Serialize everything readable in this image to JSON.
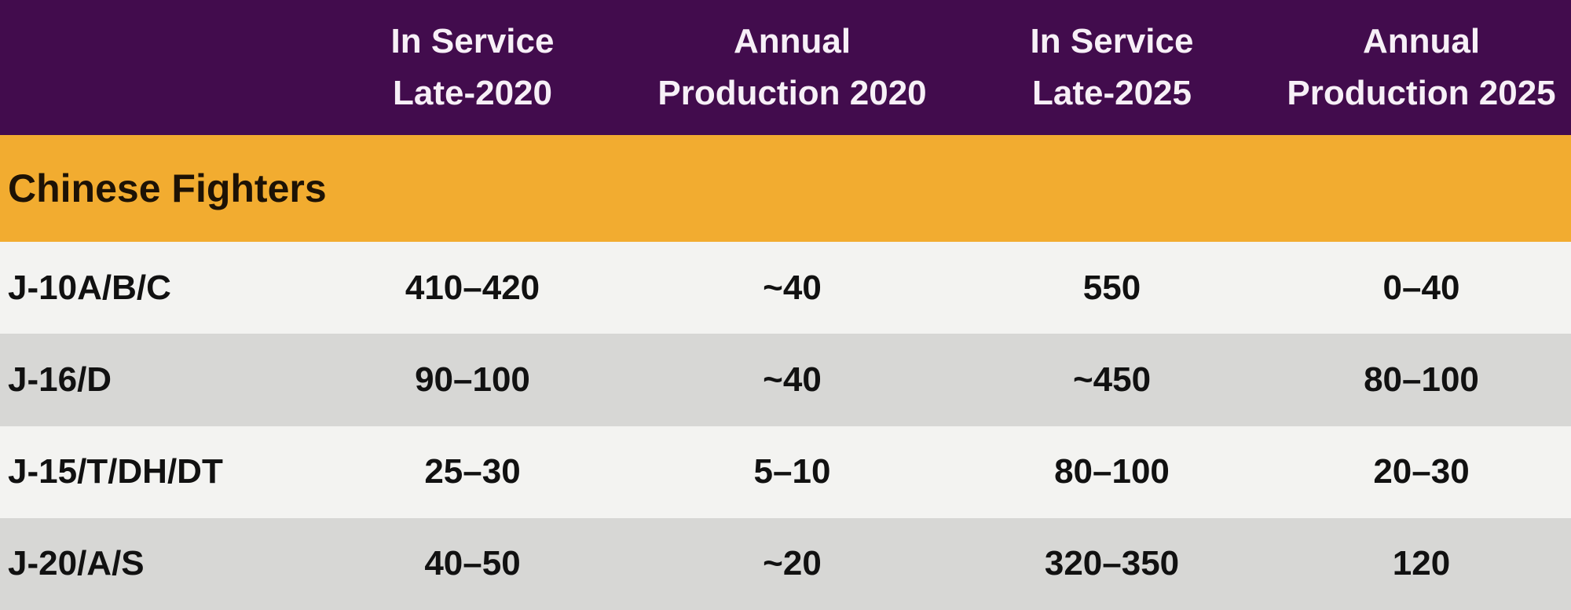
{
  "colors": {
    "header_bg": "#420c4d",
    "header_text": "#f7f0f7",
    "section_bg": "#f2ac30",
    "section_text": "#1d1205",
    "row_light": "#f3f3f1",
    "row_dark": "#d7d7d5",
    "data_text": "#111111"
  },
  "chart_data": {
    "type": "table",
    "section": "Chinese Fighters",
    "column_headers": [
      {
        "line1": "In Service",
        "line2": "Late-2020"
      },
      {
        "line1": "Annual",
        "line2": "Production 2020"
      },
      {
        "line1": "In Service",
        "line2": "Late-2025"
      },
      {
        "line1": "Annual",
        "line2": "Production 2025"
      }
    ],
    "rows": [
      {
        "label": "J-10A/B/C",
        "values": [
          "410–420",
          "~40",
          "550",
          "0–40"
        ]
      },
      {
        "label": "J-16/D",
        "values": [
          "90–100",
          "~40",
          "~450",
          "80–100"
        ]
      },
      {
        "label": "J-15/T/DH/DT",
        "values": [
          "25–30",
          "5–10",
          "80–100",
          "20–30"
        ]
      },
      {
        "label": "J-20/A/S",
        "values": [
          "40–50",
          "~20",
          "320–350",
          "120"
        ]
      }
    ]
  }
}
